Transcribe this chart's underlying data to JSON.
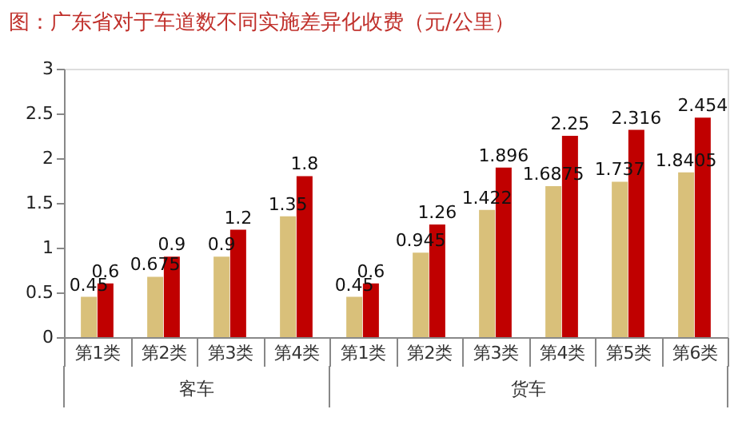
{
  "chart_data": {
    "type": "bar",
    "title": "图：广东省对于车道数不同实施差异化收费（元/公里）",
    "categories": [
      "第1类",
      "第2类",
      "第3类",
      "第4类",
      "第1类",
      "第2类",
      "第3类",
      "第4类",
      "第5类",
      "第6类"
    ],
    "series": [
      {
        "color": "#d9c07a",
        "values": [
          0.45,
          0.675,
          0.9,
          1.35,
          0.45,
          0.945,
          1.422,
          1.6875,
          1.737,
          1.8405
        ]
      },
      {
        "color": "#c00000",
        "values": [
          0.6,
          0.9,
          1.2,
          1.8,
          0.6,
          1.26,
          1.896,
          2.25,
          2.316,
          2.454
        ]
      }
    ],
    "annotations": [
      "客车",
      "货车"
    ],
    "ylim": [
      0,
      3
    ],
    "yticks": [
      0,
      0.5,
      1,
      1.5,
      2,
      2.5,
      3
    ],
    "data_labels": true,
    "grid": false,
    "legend": false
  }
}
